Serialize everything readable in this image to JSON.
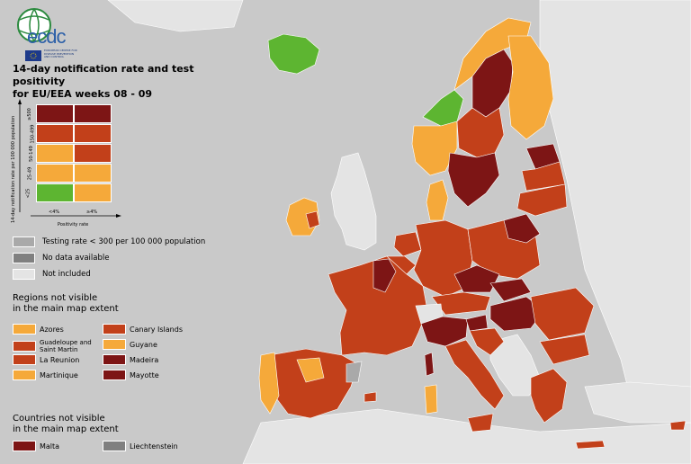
{
  "title_line1": "14-day notification rate and test positivity",
  "title_line2": "for EU/EEA weeks 08 - 09",
  "logo": {
    "text": "ecdc",
    "subtext": "EUROPEAN CENTRE FOR DISEASE PREVENTION AND CONTROL"
  },
  "colors": {
    "green": "#5db531",
    "light_orange": "#f5a93a",
    "orange_red": "#c2401a",
    "dark_red": "#7d1515",
    "grey_testing": "#a9a9a9",
    "grey_nodata": "#808080",
    "not_included": "#e4e4e4",
    "sea": "#c9c9c9"
  },
  "matrix": {
    "y_axis_label": "14-day notification rate per 100 000 population",
    "x_axis_label": "Positivity rate",
    "y_ticks": [
      "≥500",
      "150-499",
      "50-149",
      "25-49",
      "<25"
    ],
    "x_ticks": [
      "<4%",
      "≥4%"
    ],
    "cells": [
      [
        "dark_red",
        "dark_red"
      ],
      [
        "orange_red",
        "orange_red"
      ],
      [
        "light_orange",
        "orange_red"
      ],
      [
        "light_orange",
        "light_orange"
      ],
      [
        "green",
        "light_orange"
      ]
    ]
  },
  "legend": {
    "testing": "Testing rate < 300 per 100 000 population",
    "no_data": "No data available",
    "not_included": "Not included"
  },
  "regions_title_line1": "Regions not visible",
  "regions_title_line2": "in the main map extent",
  "regions": [
    {
      "name": "Azores",
      "color": "light_orange"
    },
    {
      "name": "Guadeloupe and Saint Martin",
      "color": "orange_red"
    },
    {
      "name": "La Reunion",
      "color": "orange_red"
    },
    {
      "name": "Martinique",
      "color": "light_orange"
    },
    {
      "name": "Canary Islands",
      "color": "orange_red"
    },
    {
      "name": "Guyane",
      "color": "light_orange"
    },
    {
      "name": "Madeira",
      "color": "dark_red"
    },
    {
      "name": "Mayotte",
      "color": "dark_red"
    }
  ],
  "countries_title_line1": "Countries not visible",
  "countries_title_line2": "in the main map extent",
  "countries": [
    {
      "name": "Malta",
      "color": "dark_red"
    },
    {
      "name": "Liechtenstein",
      "color": "grey_nodata"
    }
  ]
}
